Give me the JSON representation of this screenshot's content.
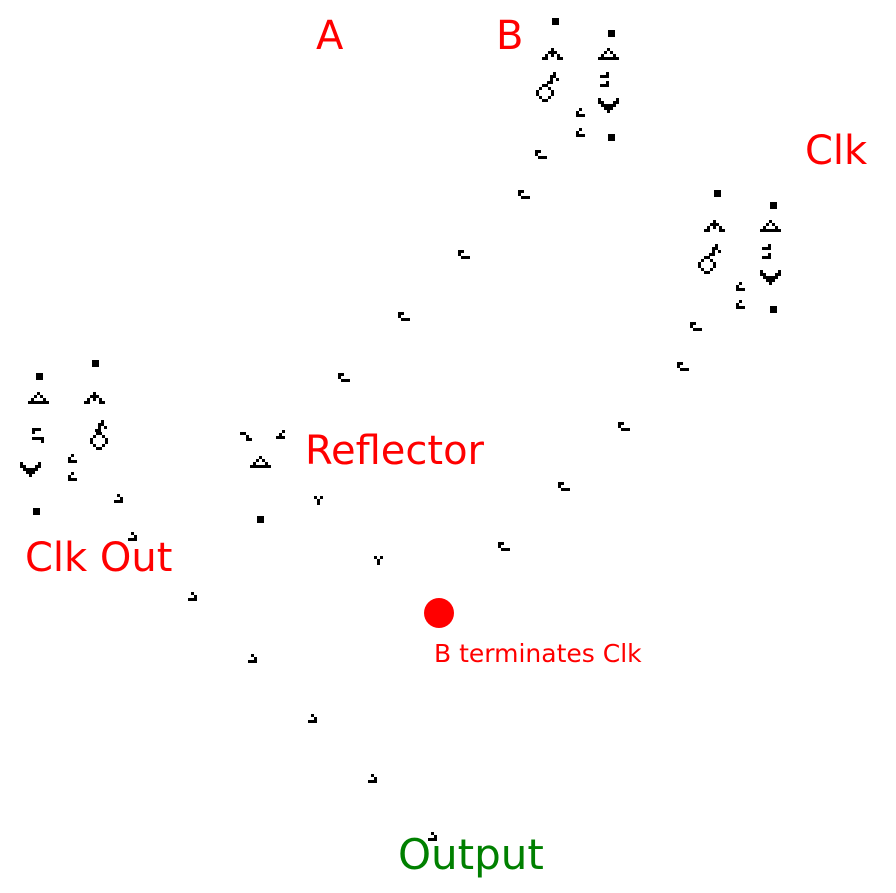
{
  "colors": {
    "label": "#ff0000",
    "output_label": "#008000",
    "marker": "#ff0000",
    "cells": "#000000",
    "background": "#ffffff"
  },
  "labels": {
    "input_a": "A",
    "input_b": "B",
    "clock": "Clk",
    "reflector": "Reflector",
    "clock_out": "Clk Out",
    "annotation": "B terminates Clk",
    "output": "Output"
  },
  "marker": {
    "icon": "red-dot-marker"
  }
}
